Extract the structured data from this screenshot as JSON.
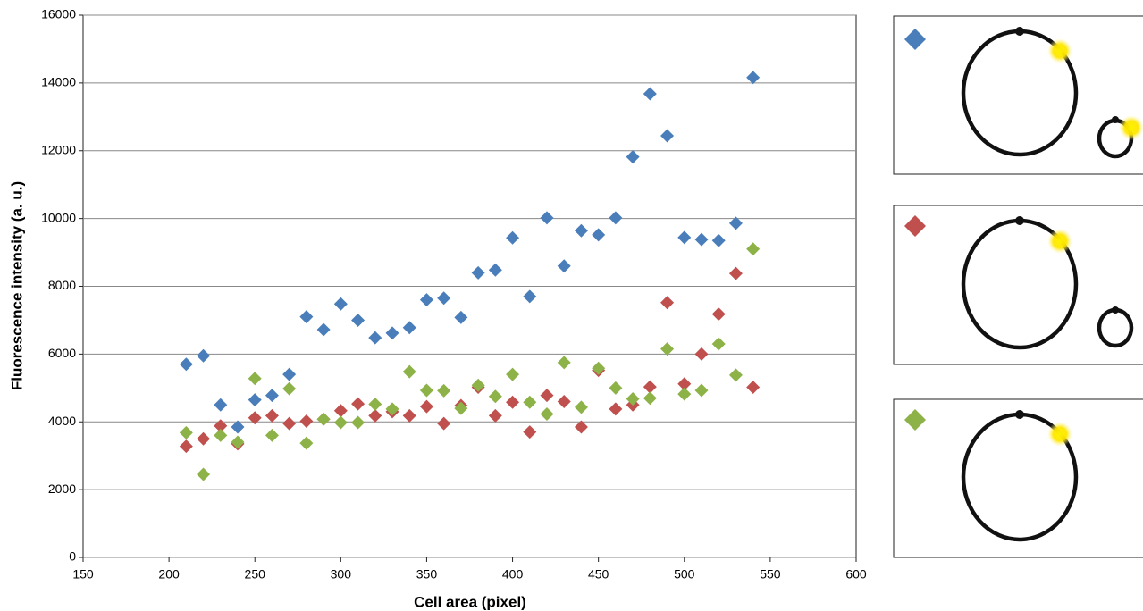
{
  "chart_data": {
    "type": "scatter",
    "x_label": "Cell area (pixel)",
    "y_label": "Fluorescence intensity (a. u.)",
    "x": [
      210,
      220,
      230,
      240,
      250,
      260,
      270,
      280,
      290,
      300,
      310,
      320,
      330,
      340,
      350,
      360,
      370,
      380,
      390,
      400,
      410,
      420,
      430,
      440,
      450,
      460,
      470,
      480,
      490,
      500,
      510,
      520,
      530,
      540
    ],
    "series": [
      {
        "color": "#4a7ebb",
        "values": [
          5700,
          5950,
          4500,
          3850,
          4650,
          4780,
          5400,
          7100,
          6720,
          7480,
          7000,
          6480,
          6620,
          6780,
          7600,
          7650,
          7080,
          8400,
          8480,
          9430,
          7700,
          10020,
          8600,
          9640,
          9520,
          10020,
          11820,
          13680,
          12440,
          9440,
          9380,
          9350,
          9860,
          14160
        ]
      },
      {
        "color": "#c0504d",
        "values": [
          3280,
          3500,
          3880,
          3350,
          4120,
          4180,
          3950,
          4020,
          4080,
          4330,
          4530,
          4180,
          4300,
          4180,
          4450,
          3950,
          4480,
          5020,
          4180,
          4580,
          3700,
          4780,
          4600,
          3850,
          5520,
          4380,
          4500,
          5030,
          7520,
          5120,
          6000,
          7180,
          8380,
          5020
        ]
      },
      {
        "color": "#8db248",
        "values": [
          3680,
          2450,
          3600,
          3400,
          5280,
          3600,
          4980,
          3370,
          4080,
          3980,
          3980,
          4520,
          4380,
          5480,
          4930,
          4920,
          4400,
          5080,
          4750,
          5400,
          4580,
          4230,
          5750,
          4430,
          5580,
          5000,
          4680,
          4700,
          6150,
          4820,
          4930,
          6300,
          5380,
          9100
        ]
      }
    ],
    "xlim": [
      150,
      600
    ],
    "xticks": [
      150,
      200,
      250,
      300,
      350,
      400,
      450,
      500,
      550,
      600
    ],
    "ylim": [
      0,
      16000
    ],
    "yticks": [
      0,
      2000,
      4000,
      6000,
      8000,
      10000,
      12000,
      14000,
      16000
    ],
    "grid": true
  }
}
